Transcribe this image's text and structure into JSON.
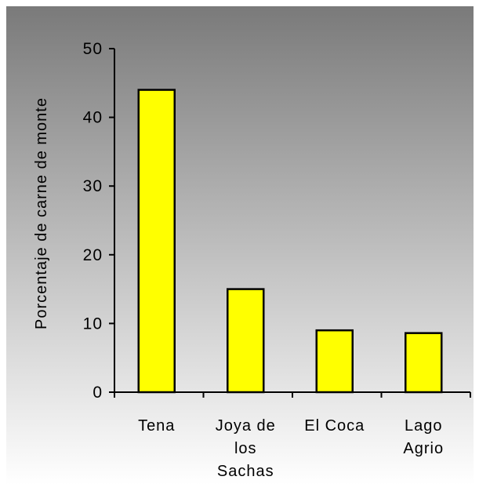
{
  "chart_data": {
    "type": "bar",
    "title": "",
    "xlabel": "",
    "ylabel": "Porcentaje de carne de monte",
    "categories": [
      "Tena",
      "Joya de los Sachas",
      "El Coca",
      "Lago Agrio"
    ],
    "category_label_lines": [
      [
        "Tena"
      ],
      [
        "Joya de",
        "los",
        "Sachas"
      ],
      [
        "El Coca"
      ],
      [
        "Lago",
        "Agrio"
      ]
    ],
    "values": [
      44,
      15,
      9,
      8.6
    ],
    "ylim": [
      0,
      50
    ],
    "yticks": [
      0,
      10,
      20,
      30,
      40,
      50
    ],
    "grid": false,
    "legend": "none",
    "colors": {
      "bar_fill": "#ffff00",
      "bar_stroke": "#000000",
      "axis": "#000000",
      "background_top": "#7a7a7a",
      "background_bottom": "#ffffff"
    }
  }
}
